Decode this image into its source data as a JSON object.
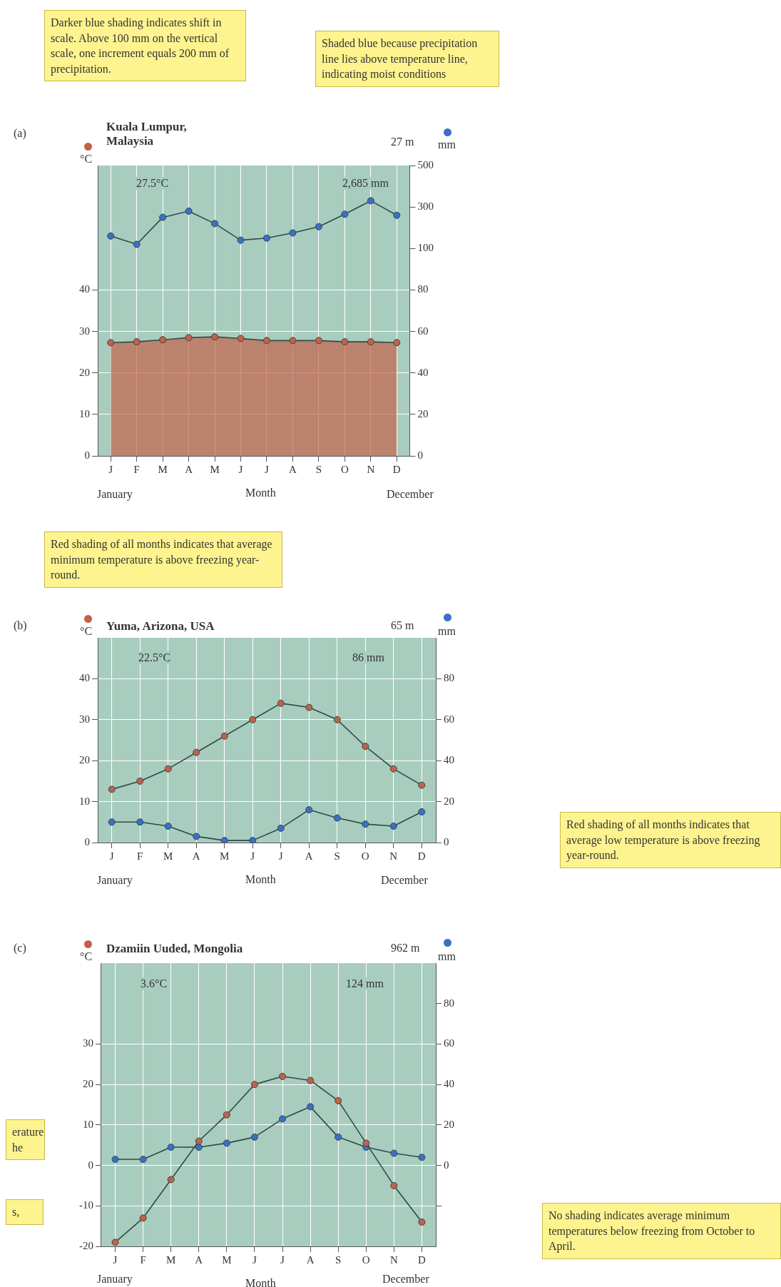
{
  "chart_data": [
    {
      "type": "line",
      "title": "Kuala Lumpur,\nMalaysia",
      "subtitle": "27 m",
      "categories": [
        "J",
        "F",
        "M",
        "A",
        "M",
        "J",
        "J",
        "A",
        "S",
        "O",
        "N",
        "D"
      ],
      "xlabel": "Month",
      "ylabel": "°C",
      "y2label": "mm",
      "series": [
        {
          "type": "area",
          "color": "#c4604a",
          "values": [
            27.3,
            27.5,
            28,
            28.5,
            28.7,
            28.3,
            27.8,
            27.8,
            27.8,
            27.5,
            27.5,
            27.3
          ]
        },
        {
          "color": "#3b6fc8",
          "axis": "y3",
          "values": [
            160,
            120,
            250,
            280,
            220,
            140,
            150,
            175,
            205,
            265,
            330,
            260
          ]
        }
      ],
      "ylim": [
        0,
        70
      ],
      "yticks": [
        0,
        10,
        20,
        30,
        40
      ],
      "y2lim": [
        0,
        140
      ],
      "y2ticks": [
        0,
        20,
        40,
        60,
        80
      ],
      "y3lim": [
        -900,
        500
      ],
      "y3ticks": [
        100,
        300,
        500
      ],
      "grid": true,
      "marker": "circle",
      "annotations": [
        "(a)",
        "27.5°C",
        "2,685 mm",
        "January",
        "December",
        "Darker blue shading indicates shift in scale. Above 100 mm on the vertical scale, one increment equals 200 mm of precipitation.",
        "Shaded blue because precipitation line lies above temperature line, indicating moist conditions",
        "Red shading of all months indicates that average minimum temperature is above freezing year-round."
      ]
    },
    {
      "type": "line",
      "title": "Yuma, Arizona, USA",
      "subtitle": "65 m",
      "categories": [
        "J",
        "F",
        "M",
        "A",
        "M",
        "J",
        "J",
        "A",
        "S",
        "O",
        "N",
        "D"
      ],
      "xlabel": "Month",
      "ylabel": "°C",
      "y2label": "mm",
      "series": [
        {
          "color": "#c4604a",
          "values": [
            13,
            15,
            18,
            22,
            26,
            30,
            34,
            33,
            30,
            23.5,
            18,
            14
          ]
        },
        {
          "color": "#3b6fc8",
          "axis": "y2",
          "values": [
            10,
            10,
            8,
            3,
            1,
            1,
            7,
            16,
            12,
            9,
            8,
            15
          ]
        }
      ],
      "ylim": [
        0,
        50
      ],
      "yticks": [
        0,
        10,
        20,
        30,
        40
      ],
      "y2lim": [
        0,
        100
      ],
      "y2ticks": [
        0,
        20,
        40,
        60,
        80
      ],
      "grid": true,
      "marker": "circle",
      "annotations": [
        "(b)",
        "22.5°C",
        "86 mm",
        "January",
        "December",
        "Red shading of all months indicates that average low temperature is above freezing year-round."
      ]
    },
    {
      "type": "line",
      "title": "Dzamiin Uuded, Mongolia",
      "subtitle": "962 m",
      "categories": [
        "J",
        "F",
        "M",
        "A",
        "M",
        "J",
        "J",
        "A",
        "S",
        "O",
        "N",
        "D"
      ],
      "xlabel": "Month",
      "ylabel": "°C",
      "y2label": "mm",
      "series": [
        {
          "color": "#c4604a",
          "values": [
            -19,
            -13,
            -3.5,
            6,
            12.5,
            20,
            22,
            21,
            16,
            5.5,
            -5,
            -14
          ]
        },
        {
          "color": "#3b6fc8",
          "axis": "y2",
          "values": [
            3,
            3,
            9,
            9,
            11,
            14,
            23,
            29,
            14,
            9,
            6,
            4
          ]
        }
      ],
      "ylim": [
        -20,
        50
      ],
      "yticks": [
        -20,
        -10,
        0,
        10,
        20,
        30
      ],
      "y2lim": [
        -40,
        100
      ],
      "y2ticks": [
        {
          "value": -20,
          "label": null
        },
        0,
        20,
        40,
        60,
        80
      ],
      "grid": true,
      "marker": "circle",
      "annotations": [
        "(c)",
        "3.6°C",
        "124 mm",
        "January",
        "December",
        "No shading indicates average minimum temperatures below freezing from October to April.",
        "erature\nhe",
        "s,"
      ]
    }
  ]
}
